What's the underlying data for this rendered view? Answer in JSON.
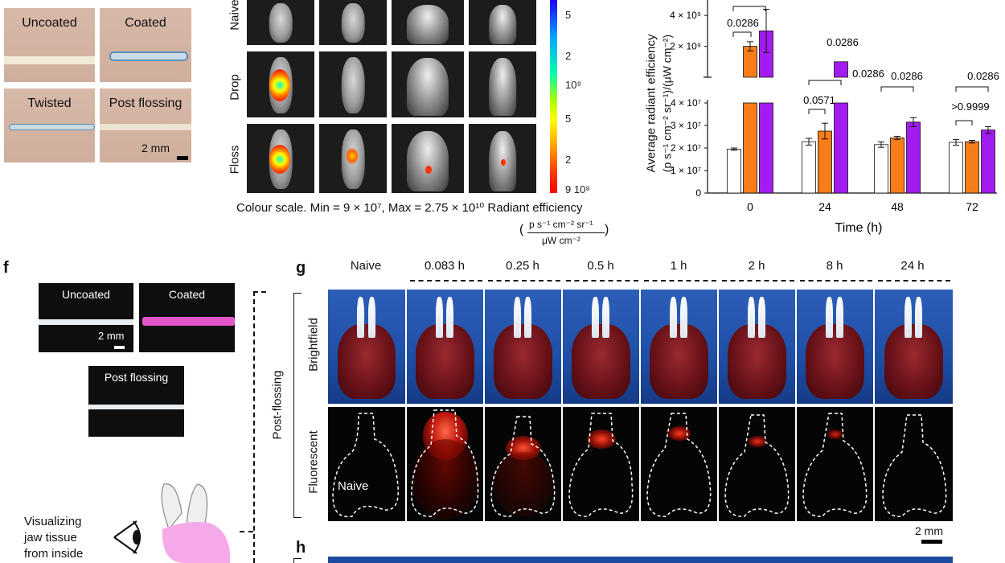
{
  "panel_top_left": {
    "cells": [
      {
        "label": "Uncoated"
      },
      {
        "label": "Coated"
      },
      {
        "label": "Twisted"
      },
      {
        "label": "Post flossing"
      }
    ],
    "scale_bar": "2 mm"
  },
  "panel_mice": {
    "rows": [
      "Naive",
      "Drop",
      "Floss"
    ],
    "colour_scale_ticks": [
      "5",
      "2",
      "10⁹",
      "5",
      "2",
      "9 10⁸"
    ],
    "caption": "Colour scale. Min = 9 × 10⁷, Max = 2.75 × 10¹⁰  Radiant efficiency",
    "unit_numerator": "p s⁻¹ cm⁻² sr⁻¹",
    "unit_denominator": "μW cm⁻²",
    "unit_open": "(",
    "unit_close": ")"
  },
  "panel_chart": {
    "ylabel_line1": "Average radiant efficiency",
    "ylabel_line2": "(p s⁻¹ cm⁻² sr⁻¹)/(μW cm⁻²)",
    "xlabel": "Time (h)"
  },
  "chart_data": {
    "type": "bar",
    "categories": [
      "0",
      "24",
      "48",
      "72"
    ],
    "series": [
      {
        "color": "#ffffff",
        "values": [
          19500000,
          22800000,
          21500000,
          22500000
        ],
        "errors": [
          500000,
          1500000,
          1200000,
          1300000
        ]
      },
      {
        "color": "#f97c1b",
        "values": [
          2000000000,
          27500000,
          24500000,
          22800000
        ],
        "errors": [
          300000000,
          3500000,
          700000,
          600000
        ]
      },
      {
        "color": "#a21cf0",
        "values": [
          3000000000,
          1000000000,
          31500000,
          28000000
        ],
        "errors": [
          1400000000,
          0,
          2000000,
          1500000
        ]
      }
    ],
    "y_ticks_lower": [
      "0",
      "1 × 10⁷",
      "2 × 10⁷",
      "3 × 10⁷",
      "4 × 10⁷"
    ],
    "y_ticks_upper": [
      "2 × 10⁹",
      "4 × 10⁹"
    ],
    "y_broken_axis": true,
    "annotations": [
      "0.0286",
      "0.0286",
      "0.0571",
      "0.0286",
      "0.0286",
      "0.0286",
      ">0.9999"
    ]
  },
  "panel_f": {
    "letter": "f",
    "uncoated": "Uncoated",
    "coated": "Coated",
    "post_flossing": "Post flossing",
    "scale_bar": "2 mm",
    "diagram_text": [
      "Visualizing",
      "jaw tissue",
      "from inside"
    ]
  },
  "panel_g": {
    "letter": "g",
    "timepoints": [
      "Naive",
      "0.083 h",
      "0.25 h",
      "0.5 h",
      "1 h",
      "2 h",
      "8 h",
      "24 h"
    ],
    "group_label": "Post-flossing",
    "row_brightfield": "Brightfield",
    "row_fluorescent": "Fluorescent",
    "naive_label": "Naive",
    "scale_bar": "2 mm"
  },
  "panel_h": {
    "letter": "h"
  }
}
